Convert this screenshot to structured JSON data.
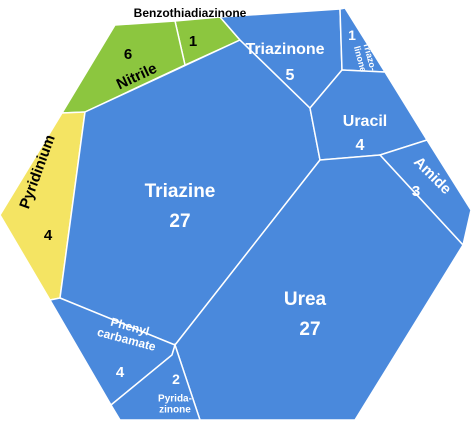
{
  "chart_data": {
    "type": "voronoi-treemap",
    "categories": [
      "Benzothiadiazinone",
      "Nitrile",
      "Pyridinium",
      "Triazine",
      "Triazinone",
      "Triazo-\nlinone",
      "Uracil",
      "Amide",
      "Urea",
      "Phenyl\ncarbamate",
      "Pyrida-\nzinone"
    ],
    "values": [
      1,
      6,
      4,
      27,
      5,
      1,
      4,
      3,
      27,
      4,
      2
    ],
    "colors": [
      "#8cc63f",
      "#8cc63f",
      "#f4e463",
      "#4a89dc",
      "#4a89dc",
      "#4a89dc",
      "#4a89dc",
      "#4a89dc",
      "#4a89dc",
      "#4a89dc",
      "#4a89dc"
    ]
  }
}
